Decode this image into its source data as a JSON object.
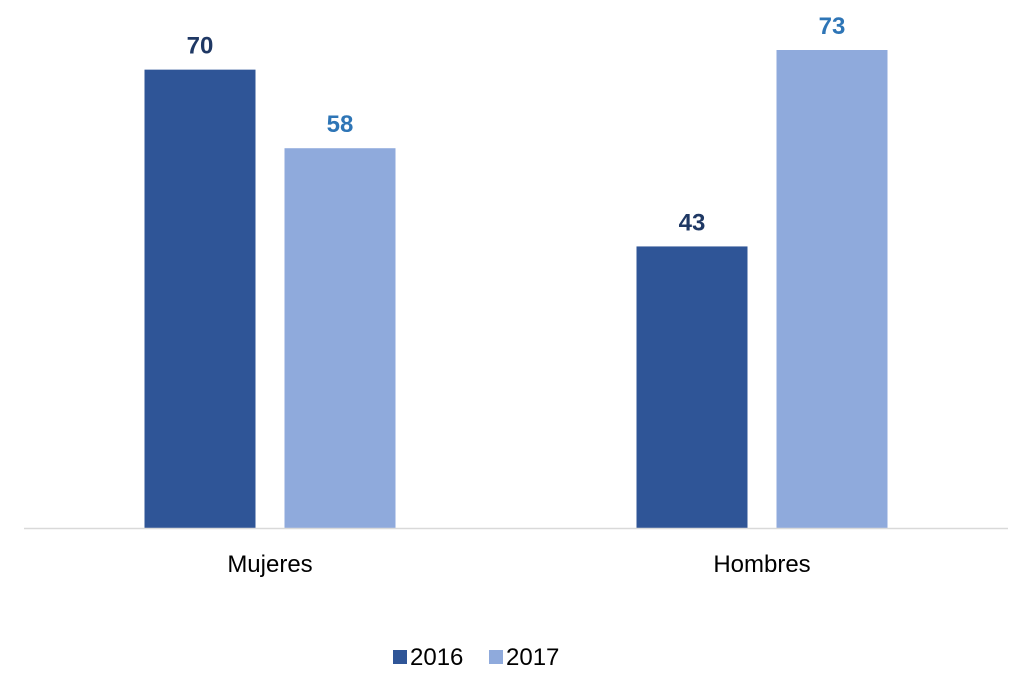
{
  "chart_data": {
    "type": "bar",
    "categories": [
      "Mujeres",
      "Hombres"
    ],
    "series": [
      {
        "name": "2016",
        "values": [
          70,
          43
        ],
        "color": "#2F5597",
        "label_color": "#1F3864"
      },
      {
        "name": "2017",
        "values": [
          58,
          73
        ],
        "color": "#8FAADC",
        "label_color": "#2E75B6"
      }
    ],
    "title": "",
    "xlabel": "",
    "ylabel": "",
    "ylim": [
      0,
      80
    ],
    "grid": false,
    "legend": "bottom-center",
    "axis_color": "#D9D9D9"
  }
}
